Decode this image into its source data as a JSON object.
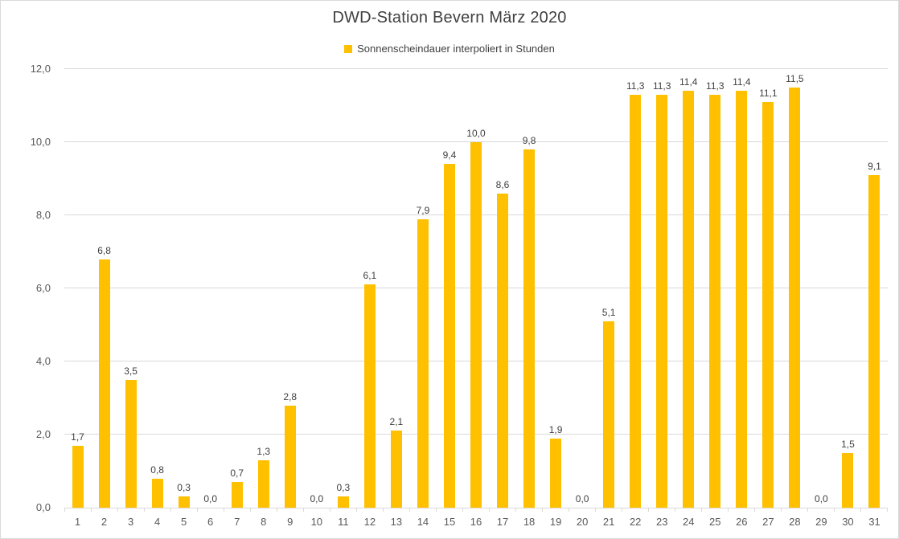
{
  "chart": {
    "title": "DWD-Station Bevern März 2020",
    "legend": {
      "label": "Sonnenscheindauer interpoliert in Stunden",
      "swatch_color": "#FFC000"
    }
  },
  "chart_data": {
    "type": "bar",
    "title": "DWD-Station Bevern März 2020",
    "series_name": "Sonnenscheindauer interpoliert in Stunden",
    "xlabel": "",
    "ylabel": "",
    "categories": [
      "1",
      "2",
      "3",
      "4",
      "5",
      "6",
      "7",
      "8",
      "9",
      "10",
      "11",
      "12",
      "13",
      "14",
      "15",
      "16",
      "17",
      "18",
      "19",
      "20",
      "21",
      "22",
      "23",
      "24",
      "25",
      "26",
      "27",
      "28",
      "29",
      "30",
      "31"
    ],
    "values": [
      1.7,
      6.8,
      3.5,
      0.8,
      0.3,
      0.0,
      0.7,
      1.3,
      2.8,
      0.0,
      0.3,
      6.1,
      2.1,
      7.9,
      9.4,
      10.0,
      8.6,
      9.8,
      1.9,
      0.0,
      5.1,
      11.3,
      11.3,
      11.4,
      11.3,
      11.4,
      11.1,
      11.5,
      0.0,
      1.5,
      9.1
    ],
    "data_labels": [
      "1,7",
      "6,8",
      "3,5",
      "0,8",
      "0,3",
      "0,0",
      "0,7",
      "1,3",
      "2,8",
      "0,0",
      "0,3",
      "6,1",
      "2,1",
      "7,9",
      "9,4",
      "10,0",
      "8,6",
      "9,8",
      "1,9",
      "0,0",
      "5,1",
      "11,3",
      "11,3",
      "11,4",
      "11,3",
      "11,4",
      "11,1",
      "11,5",
      "0,0",
      "1,5",
      "9,1"
    ],
    "ylim": [
      0,
      12
    ],
    "y_ticks": [
      "0,0",
      "2,0",
      "4,0",
      "6,0",
      "8,0",
      "10,0",
      "12,0"
    ],
    "grid": true,
    "legend_position": "top",
    "bar_color": "#FFC000",
    "gridline_color": "#d9d9d9"
  }
}
